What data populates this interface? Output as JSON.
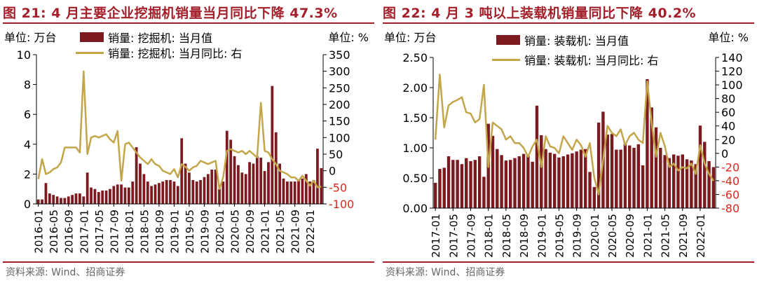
{
  "colors": {
    "title": "#a3202a",
    "bar": "#7b1a1f",
    "line": "#c3a54a",
    "right_tick_neg": "#e0261e",
    "source": "#666666"
  },
  "left": {
    "title": "图 21:  4 月主要企业挖掘机销量当月同比下降 47.3%",
    "unit_left": "单位:  万台",
    "unit_right": "单位:  %",
    "legend_bar": "销量:  挖掘机:  当月值",
    "legend_line": "销量:  挖掘机:  当月同比:  右",
    "source": "资料来源:  Wind、招商证券"
  },
  "right": {
    "title": "图 22:  4 月 3 吨以上装载机销量同比下降 40.2%",
    "unit_left": "单位:  万台",
    "unit_right": "单位:  %",
    "legend_bar": "销量: 装载机: 当月值",
    "legend_line": "销量: 装载机: 当月同比: 右",
    "source": "资料来源:  Wind、招商证券"
  },
  "chart_data": [
    {
      "type": "bar",
      "title": "图 21:  4 月主要企业挖掘机销量当月同比下降 47.3%",
      "y_left": {
        "lim": [
          0,
          10
        ],
        "ticks": [
          "0",
          "2",
          "4",
          "6",
          "8",
          "10"
        ],
        "unit": "万台"
      },
      "y_right": {
        "lim": [
          -100,
          350
        ],
        "ticks": [
          "-100",
          "-50",
          "0",
          "50",
          "100",
          "150",
          "200",
          "250",
          "300",
          "350"
        ],
        "unit": "%"
      },
      "x_tick_labels": [
        "2016-01",
        "2016-05",
        "2016-09",
        "2017-01",
        "2017-05",
        "2017-09",
        "2018-01",
        "2018-05",
        "2018-09",
        "2019-01",
        "2019-05",
        "2019-09",
        "2020-01",
        "2020-05",
        "2020-09",
        "2021-01",
        "2021-05",
        "2021-09",
        "2022-01"
      ],
      "categories": [
        "2016-01",
        "2016-02",
        "2016-03",
        "2016-04",
        "2016-05",
        "2016-06",
        "2016-07",
        "2016-08",
        "2016-09",
        "2016-10",
        "2016-11",
        "2016-12",
        "2017-01",
        "2017-02",
        "2017-03",
        "2017-04",
        "2017-05",
        "2017-06",
        "2017-07",
        "2017-08",
        "2017-09",
        "2017-10",
        "2017-11",
        "2017-12",
        "2018-01",
        "2018-02",
        "2018-03",
        "2018-04",
        "2018-05",
        "2018-06",
        "2018-07",
        "2018-08",
        "2018-09",
        "2018-10",
        "2018-11",
        "2018-12",
        "2019-01",
        "2019-02",
        "2019-03",
        "2019-04",
        "2019-05",
        "2019-06",
        "2019-07",
        "2019-08",
        "2019-09",
        "2019-10",
        "2019-11",
        "2019-12",
        "2020-01",
        "2020-02",
        "2020-03",
        "2020-04",
        "2020-05",
        "2020-06",
        "2020-07",
        "2020-08",
        "2020-09",
        "2020-10",
        "2020-11",
        "2020-12",
        "2021-01",
        "2021-02",
        "2021-03",
        "2021-04",
        "2021-05",
        "2021-06",
        "2021-07",
        "2021-08",
        "2021-09",
        "2021-10",
        "2021-11",
        "2021-12",
        "2022-01",
        "2022-02",
        "2022-03",
        "2022-04"
      ],
      "series": [
        {
          "name": "销量:  挖掘机:  当月值",
          "axis": "left",
          "kind": "bar",
          "values": [
            0.3,
            0.3,
            1.4,
            0.7,
            0.6,
            0.5,
            0.4,
            0.4,
            0.5,
            0.6,
            0.7,
            0.7,
            0.5,
            2.1,
            1.1,
            1.0,
            0.8,
            0.9,
            0.9,
            1.0,
            1.2,
            1.3,
            1.3,
            1.1,
            1.1,
            1.5,
            3.8,
            2.7,
            2.0,
            1.5,
            1.2,
            1.3,
            1.4,
            1.5,
            1.6,
            1.6,
            1.5,
            1.2,
            4.4,
            2.7,
            2.1,
            1.6,
            1.5,
            1.6,
            1.8,
            2.0,
            2.3,
            2.3,
            1.0,
            1.5,
            4.9,
            4.3,
            3.2,
            2.6,
            2.1,
            2.0,
            2.8,
            2.7,
            3.2,
            3.1,
            2.2,
            2.8,
            7.9,
            4.8,
            2.7,
            1.7,
            1.5,
            1.5,
            1.5,
            1.6,
            1.7,
            2.0,
            1.5,
            1.6,
            3.7,
            2.4
          ]
        },
        {
          "name": "销量:  挖掘机:  当月同比:  右",
          "axis": "right",
          "kind": "line",
          "values": [
            -25,
            35,
            -10,
            -5,
            5,
            10,
            25,
            70,
            70,
            70,
            70,
            55,
            300,
            50,
            100,
            105,
            100,
            105,
            110,
            95,
            85,
            120,
            -30,
            80,
            85,
            70,
            55,
            40,
            30,
            20,
            35,
            20,
            15,
            0,
            -5,
            -10,
            5,
            -20,
            20,
            12,
            0,
            10,
            15,
            30,
            25,
            20,
            25,
            30,
            -55,
            -20,
            60,
            65,
            60,
            55,
            60,
            50,
            60,
            50,
            40,
            205,
            60,
            55,
            35,
            20,
            0,
            -5,
            -10,
            -20,
            -20,
            -30,
            -15,
            -30,
            -45,
            -30,
            -50,
            -47.3
          ]
        }
      ]
    },
    {
      "type": "bar",
      "title": "图 22:  4 月 3 吨以上装载机销量同比下降 40.2%",
      "y_left": {
        "lim": [
          0,
          2.5
        ],
        "ticks": [
          "0.00",
          "0.50",
          "1.00",
          "1.50",
          "2.00",
          "2.50"
        ],
        "unit": "万台"
      },
      "y_right": {
        "lim": [
          -80,
          140
        ],
        "ticks": [
          "-80",
          "-60",
          "-40",
          "-20",
          "0",
          "20",
          "40",
          "60",
          "80",
          "100",
          "120",
          "140"
        ],
        "unit": "%"
      },
      "x_tick_labels": [
        "2017-01",
        "2017-05",
        "2017-09",
        "2018-01",
        "2018-05",
        "2018-09",
        "2019-01",
        "2019-05",
        "2019-09",
        "2020-01",
        "2020-05",
        "2020-09",
        "2021-01",
        "2021-05",
        "2021-09",
        "2022-01"
      ],
      "categories": [
        "2017-01",
        "2017-02",
        "2017-03",
        "2017-04",
        "2017-05",
        "2017-06",
        "2017-07",
        "2017-08",
        "2017-09",
        "2017-10",
        "2017-11",
        "2017-12",
        "2018-01",
        "2018-02",
        "2018-03",
        "2018-04",
        "2018-05",
        "2018-06",
        "2018-07",
        "2018-08",
        "2018-09",
        "2018-10",
        "2018-11",
        "2018-12",
        "2019-01",
        "2019-02",
        "2019-03",
        "2019-04",
        "2019-05",
        "2019-06",
        "2019-07",
        "2019-08",
        "2019-09",
        "2019-10",
        "2019-11",
        "2019-12",
        "2020-01",
        "2020-02",
        "2020-03",
        "2020-04",
        "2020-05",
        "2020-06",
        "2020-07",
        "2020-08",
        "2020-09",
        "2020-10",
        "2020-11",
        "2020-12",
        "2021-01",
        "2021-02",
        "2021-03",
        "2021-04",
        "2021-05",
        "2021-06",
        "2021-07",
        "2021-08",
        "2021-09",
        "2021-10",
        "2021-11",
        "2021-12",
        "2022-01",
        "2022-02",
        "2022-03",
        "2022-04"
      ],
      "series": [
        {
          "name": "销量: 装载机: 当月值",
          "axis": "left",
          "kind": "bar",
          "values": [
            0.42,
            0.65,
            0.67,
            0.86,
            0.8,
            0.8,
            0.73,
            0.83,
            0.78,
            0.8,
            0.86,
            0.52,
            1.4,
            1.2,
            0.98,
            0.88,
            0.79,
            0.8,
            0.83,
            0.86,
            0.9,
            0.87,
            0.77,
            1.7,
            1.21,
            0.98,
            0.92,
            0.9,
            0.84,
            0.86,
            0.89,
            0.91,
            0.94,
            0.97,
            0.98,
            0.6,
            0.35,
            1.42,
            1.6,
            1.22,
            1.23,
            0.97,
            0.97,
            1.07,
            1.04,
            1.0,
            1.06,
            0.71,
            2.14,
            1.67,
            1.34,
            1.0,
            0.88,
            0.83,
            0.89,
            0.87,
            0.89,
            0.81,
            0.79,
            0.73,
            1.37,
            1.1,
            0.78,
            0.68
          ]
        },
        {
          "name": "销量: 装载机: 当月同比: 右",
          "axis": "right",
          "kind": "line",
          "values": [
            20,
            115,
            38,
            70,
            75,
            78,
            82,
            60,
            58,
            45,
            50,
            100,
            -20,
            45,
            40,
            35,
            20,
            25,
            15,
            15,
            8,
            -5,
            10,
            20,
            -20,
            25,
            10,
            8,
            0,
            25,
            15,
            5,
            20,
            12,
            -5,
            15,
            -35,
            -60,
            -10,
            40,
            30,
            25,
            35,
            12,
            25,
            30,
            20,
            15,
            105,
            45,
            -5,
            30,
            10,
            -20,
            -15,
            -25,
            -20,
            -22,
            -15,
            -30,
            12,
            -15,
            -30,
            -40.2
          ]
        }
      ]
    }
  ]
}
